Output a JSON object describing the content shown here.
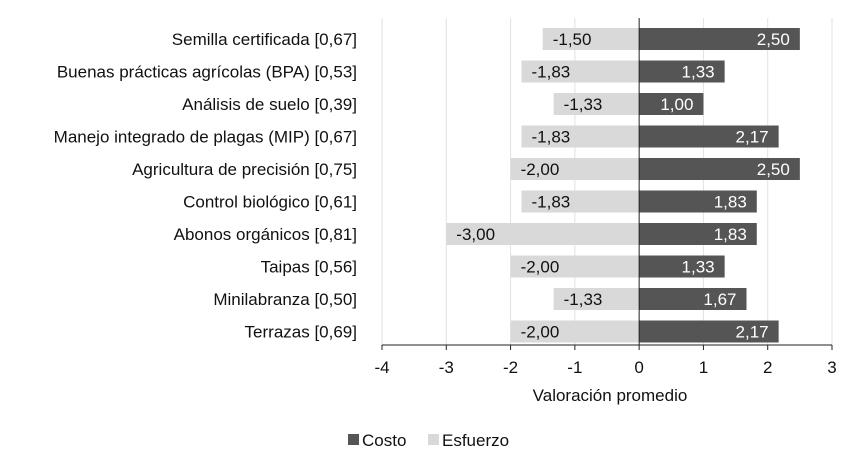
{
  "chart_data": {
    "type": "bar",
    "orientation": "horizontal",
    "stacked": "diverging",
    "categories": [
      "Semilla certificada [0,67]",
      "Buenas prácticas agrícolas (BPA) [0,53]",
      "Análisis de suelo [0,39]",
      "Manejo integrado de plagas (MIP) [0,67]",
      "Agricultura de precisión [0,75]",
      "Control biológico [0,61]",
      "Abonos orgánicos [0,81]",
      "Taipas [0,56]",
      "Minilabranza [0,50]",
      "Terrazas [0,69]"
    ],
    "series": [
      {
        "name": "Costo",
        "color": "#555555",
        "values": [
          2.5,
          1.33,
          1.0,
          2.17,
          2.5,
          1.83,
          1.83,
          1.33,
          1.67,
          2.17
        ],
        "labels": [
          "2,50",
          "1,33",
          "1,00",
          "2,17",
          "2,50",
          "1,83",
          "1,83",
          "1,33",
          "1,67",
          "2,17"
        ]
      },
      {
        "name": "Esfuerzo",
        "color": "#d9d9d9",
        "values": [
          -1.5,
          -1.83,
          -1.33,
          -1.83,
          -2.0,
          -1.83,
          -3.0,
          -2.0,
          -1.33,
          -2.0
        ],
        "labels": [
          "-1,50",
          "-1,83",
          "-1,33",
          "-1,83",
          "-2,00",
          "-1,83",
          "-3,00",
          "-2,00",
          "-1,33",
          "-2,00"
        ]
      }
    ],
    "xlabel": "Valoración promedio",
    "xlim": [
      -4,
      3
    ],
    "xticks": [
      -4,
      -3,
      -2,
      -1,
      0,
      1,
      2,
      3
    ],
    "xtick_labels": [
      "-4",
      "-3",
      "-2",
      "-1",
      "0",
      "1",
      "2",
      "3"
    ],
    "grid": "vertical",
    "legend": "bottom-center"
  }
}
